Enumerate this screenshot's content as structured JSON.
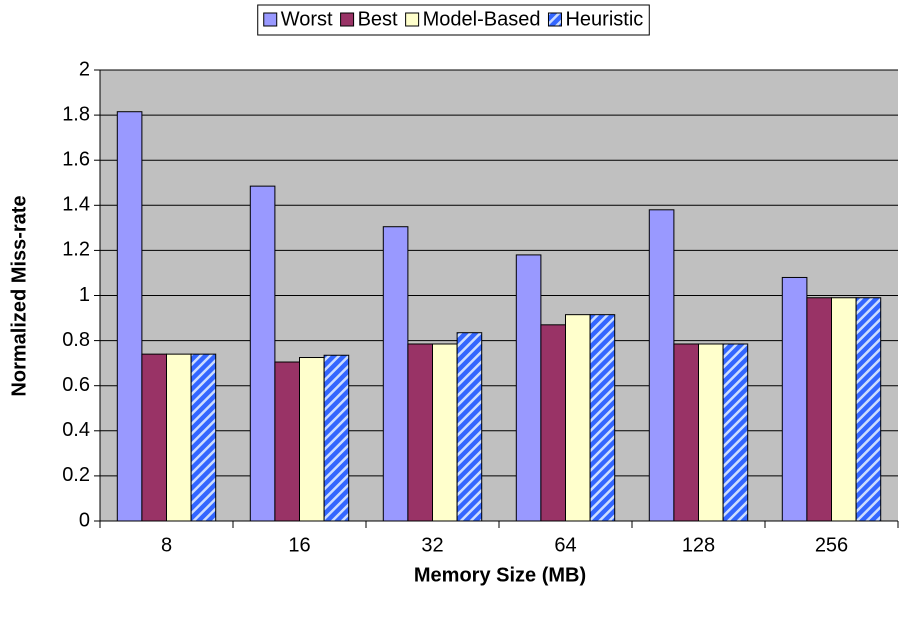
{
  "chart_data": {
    "type": "bar",
    "xlabel": "Memory Size (MB)",
    "ylabel": "Normalized Miss-rate",
    "categories": [
      "8",
      "16",
      "32",
      "64",
      "128",
      "256"
    ],
    "series": [
      {
        "name": "Worst",
        "color": "#9999ff",
        "values": [
          1.815,
          1.485,
          1.305,
          1.18,
          1.38,
          1.08
        ]
      },
      {
        "name": "Best",
        "color": "#993366",
        "values": [
          0.74,
          0.705,
          0.785,
          0.87,
          0.785,
          0.99
        ]
      },
      {
        "name": "Model-Based",
        "color": "#ffffcc",
        "values": [
          0.74,
          0.725,
          0.785,
          0.915,
          0.785,
          0.99
        ]
      },
      {
        "name": "Heuristic",
        "color": "#3366ff",
        "pattern": "hatch",
        "values": [
          0.74,
          0.735,
          0.835,
          0.915,
          0.785,
          0.99
        ]
      }
    ],
    "ylim": [
      0,
      2
    ],
    "yticks": [
      0,
      {
        "value": 0.2,
        "label": "0.2"
      },
      {
        "value": 0.4,
        "label": "0.4"
      },
      {
        "value": 0.6,
        "label": "0.6"
      },
      {
        "value": 0.8,
        "label": "0.8"
      },
      1,
      {
        "value": 1.2,
        "label": "1.2"
      },
      {
        "value": 1.4,
        "label": "1.4"
      },
      {
        "value": 1.6,
        "label": "1.6"
      },
      {
        "value": 1.8,
        "label": "1.8"
      },
      2
    ],
    "grid": true,
    "legend": "top",
    "background": "#c0c0c0"
  }
}
